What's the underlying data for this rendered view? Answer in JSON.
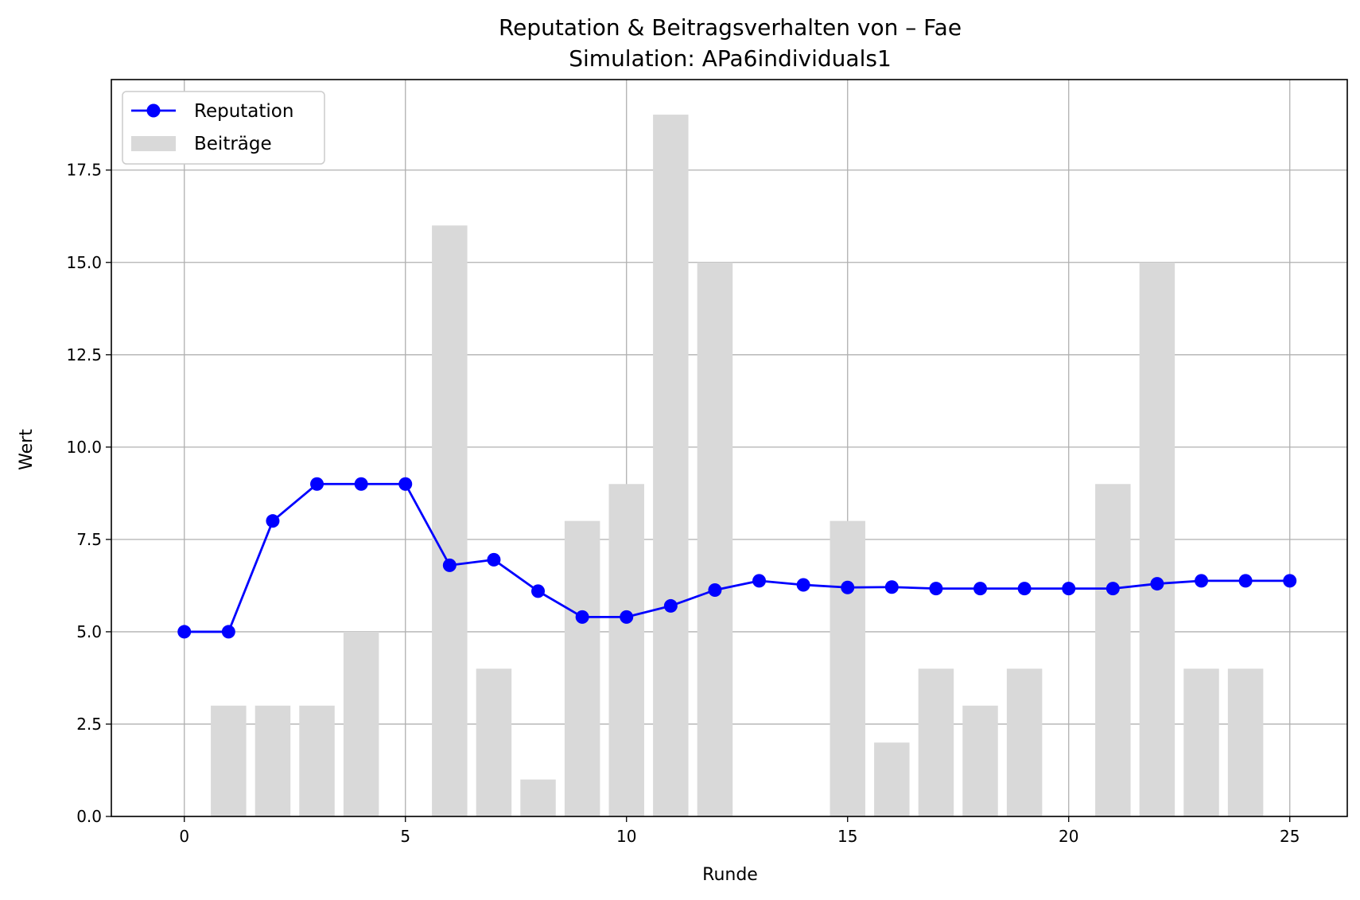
{
  "chart_data": {
    "type": "bar+line",
    "title": "Reputation & Beitragsverhalten von – Fae",
    "subtitle": "Simulation: APa6individuals1",
    "xlabel": "Runde",
    "ylabel": "Wert",
    "xlim": [
      -1.65,
      26.3
    ],
    "ylim": [
      0,
      19.95
    ],
    "xticks": [
      0,
      5,
      10,
      15,
      20,
      25
    ],
    "yticks": [
      0.0,
      2.5,
      5.0,
      7.5,
      10.0,
      12.5,
      15.0,
      17.5
    ],
    "grid": true,
    "legend_position": "upper-left",
    "bars": {
      "name": "Beiträge",
      "color": "#d9d9d9",
      "x": [
        0,
        1,
        2,
        3,
        4,
        5,
        6,
        7,
        8,
        9,
        10,
        11,
        12,
        13,
        14,
        15,
        16,
        17,
        18,
        19,
        20,
        21,
        22,
        23,
        24,
        25
      ],
      "values": [
        0,
        3,
        3,
        3,
        5,
        0,
        16,
        4,
        1,
        8,
        9,
        19,
        15,
        0,
        0,
        8,
        2,
        4,
        3,
        4,
        0,
        9,
        15,
        4,
        4,
        0
      ]
    },
    "line": {
      "name": "Reputation",
      "color": "#0000ff",
      "x": [
        0,
        1,
        2,
        3,
        4,
        5,
        6,
        7,
        8,
        9,
        10,
        11,
        12,
        13,
        14,
        15,
        16,
        17,
        18,
        19,
        20,
        21,
        22,
        23,
        24,
        25
      ],
      "values": [
        5.0,
        5.0,
        8.0,
        9.0,
        9.0,
        9.0,
        6.8,
        6.95,
        6.1,
        5.4,
        5.4,
        5.7,
        6.13,
        6.38,
        6.27,
        6.2,
        6.21,
        6.17,
        6.17,
        6.17,
        6.17,
        6.17,
        6.3,
        6.38,
        6.38,
        6.38
      ]
    }
  }
}
